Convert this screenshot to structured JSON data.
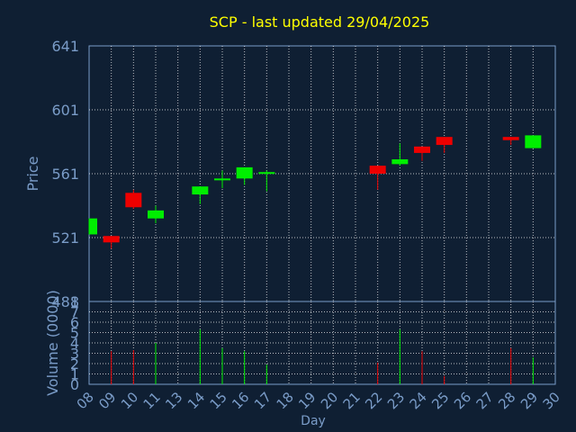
{
  "chart_data": {
    "type": "candlestick",
    "title": "SCP - last updated 29/04/2025",
    "xlabel": "Day",
    "price_panel": {
      "ylabel": "Price",
      "ylim": [
        481,
        641
      ],
      "y_ticks": [
        "481",
        "521",
        "561",
        "601",
        "641"
      ],
      "grid": true
    },
    "volume_panel": {
      "ylabel": "Volume (0000)",
      "ylim": [
        0,
        8
      ],
      "y_ticks": [
        "0",
        "1",
        "2",
        "3",
        "4",
        "5",
        "6",
        "7",
        "8"
      ],
      "grid": true
    },
    "x_ticks": [
      "08",
      "09",
      "10",
      "11",
      "13",
      "14",
      "15",
      "16",
      "17",
      "18",
      "19",
      "20",
      "21",
      "22",
      "23",
      "24",
      "25",
      "26",
      "27",
      "28",
      "29",
      "30"
    ],
    "candles": [
      {
        "day": "08",
        "open": 523,
        "high": 533,
        "low": 523,
        "close": 533,
        "volume": 0
      },
      {
        "day": "09",
        "open": 522,
        "high": 522,
        "low": 514,
        "close": 518,
        "volume": 3.2
      },
      {
        "day": "10",
        "open": 549,
        "high": 551,
        "low": 539,
        "close": 540,
        "volume": 3.3
      },
      {
        "day": "11",
        "open": 533,
        "high": 541,
        "low": 530,
        "close": 538,
        "volume": 4.0
      },
      {
        "day": "14",
        "open": 548,
        "high": 553,
        "low": 542,
        "close": 553,
        "volume": 5.3
      },
      {
        "day": "15",
        "open": 557,
        "high": 563,
        "low": 552,
        "close": 558,
        "volume": 3.5
      },
      {
        "day": "16",
        "open": 558,
        "high": 565,
        "low": 554,
        "close": 565,
        "volume": 3.2
      },
      {
        "day": "17",
        "open": 561,
        "high": 563,
        "low": 550,
        "close": 562,
        "volume": 1.9
      },
      {
        "day": "22",
        "open": 566,
        "high": 566,
        "low": 551,
        "close": 561,
        "volume": 2.1
      },
      {
        "day": "23",
        "open": 567,
        "high": 580,
        "low": 566,
        "close": 570,
        "volume": 5.3
      },
      {
        "day": "24",
        "open": 578,
        "high": 578,
        "low": 569,
        "close": 574,
        "volume": 3.2
      },
      {
        "day": "25",
        "open": 584,
        "high": 584,
        "low": 574,
        "close": 579,
        "volume": 0.8
      },
      {
        "day": "28",
        "open": 584,
        "high": 584,
        "low": 579,
        "close": 582,
        "volume": 3.5
      },
      {
        "day": "29",
        "open": 577,
        "high": 585,
        "low": 577,
        "close": 585,
        "volume": 2.6
      }
    ],
    "colors": {
      "background": "#0f1f33",
      "up": "#00ee00",
      "down": "#ee0000",
      "title": "#ffff00",
      "axis_text": "#7a9cc8",
      "grid": "#ffffff"
    }
  }
}
